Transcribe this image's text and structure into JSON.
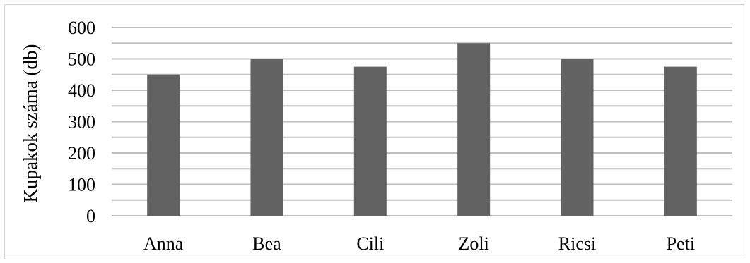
{
  "chart_data": {
    "type": "bar",
    "title": "",
    "xlabel": "",
    "ylabel": "Kupakok száma (db)",
    "categories": [
      "Anna",
      "Bea",
      "Cili",
      "Zoli",
      "Ricsi",
      "Peti"
    ],
    "values": [
      450,
      500,
      475,
      550,
      500,
      475
    ],
    "ylim": [
      0,
      600
    ],
    "major_ticks": [
      0,
      100,
      200,
      300,
      400,
      500,
      600
    ],
    "minor_step": 50,
    "grid": true,
    "legend": "none",
    "colors": {
      "bar": "#626262",
      "grid": "#c0c0c0",
      "frame": "#d0d0d0"
    }
  }
}
